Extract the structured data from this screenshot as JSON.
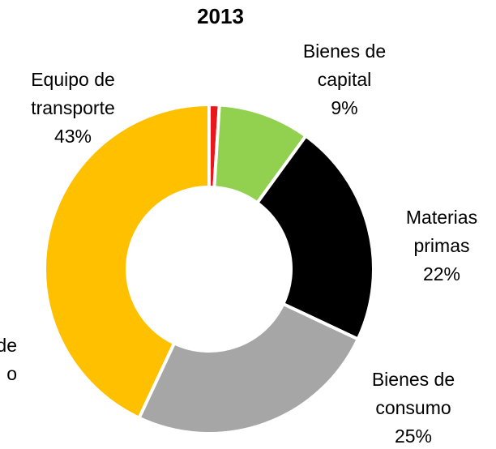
{
  "chart_data": {
    "type": "donut",
    "title": "2013",
    "categories": [
      null,
      [
        "Bienes de",
        "capital"
      ],
      [
        "Materias",
        "primas"
      ],
      [
        "Bienes de",
        "consumo"
      ],
      [
        "Equipo de",
        "transporte"
      ]
    ],
    "values": [
      1,
      9,
      22,
      25,
      43
    ],
    "value_labels": [
      null,
      "9%",
      "22%",
      "25%",
      "43%"
    ],
    "colors": [
      "#e8171b",
      "#92d050",
      "#000000",
      "#a6a6a6",
      "#ffc000"
    ],
    "annotations": [
      "de",
      "o"
    ]
  }
}
